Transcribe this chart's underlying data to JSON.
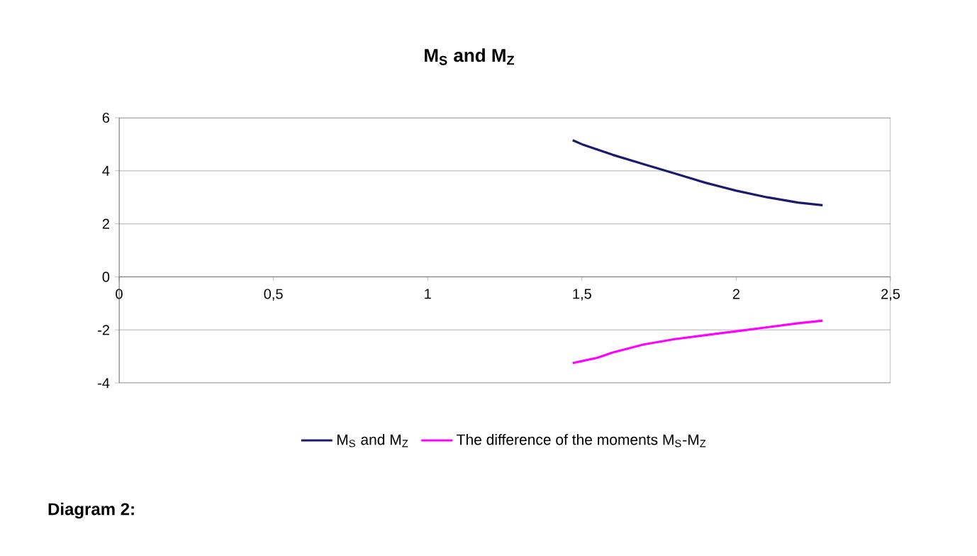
{
  "chart_data": {
    "type": "line",
    "title": "M$_{S}$ and M$_{Z}$",
    "xlim": [
      0,
      2.5
    ],
    "xticks": [
      0,
      {
        "value": 0.5,
        "label": "0,5"
      },
      1,
      {
        "value": 1.5,
        "label": "1,5"
      },
      2,
      {
        "value": 2.5,
        "label": "2,5"
      }
    ],
    "ylim": [
      -4,
      6
    ],
    "yticks": [
      -4,
      -2,
      0,
      2,
      4,
      6
    ],
    "grid": "y",
    "legend": "bottom",
    "series": [
      {
        "name": "M$_{S}$ and M$_{Z}$",
        "color": "#1a1a6e",
        "x": [
          1.47,
          1.5,
          1.6,
          1.7,
          1.8,
          1.9,
          2.0,
          2.1,
          2.2,
          2.28
        ],
        "values": [
          5.15,
          5.0,
          4.6,
          4.25,
          3.9,
          3.55,
          3.25,
          3.0,
          2.8,
          2.7
        ]
      },
      {
        "name": "The difference of the moments M$_{S}$-M$_{Z}$",
        "color": "#ff00ff",
        "x": [
          1.47,
          1.55,
          1.6,
          1.7,
          1.8,
          1.9,
          2.0,
          2.1,
          2.2,
          2.28
        ],
        "values": [
          -3.25,
          -3.05,
          -2.85,
          -2.55,
          -2.35,
          -2.2,
          -2.05,
          -1.9,
          -1.75,
          -1.65
        ]
      }
    ],
    "annotations": [
      "Diagram 2:"
    ]
  }
}
